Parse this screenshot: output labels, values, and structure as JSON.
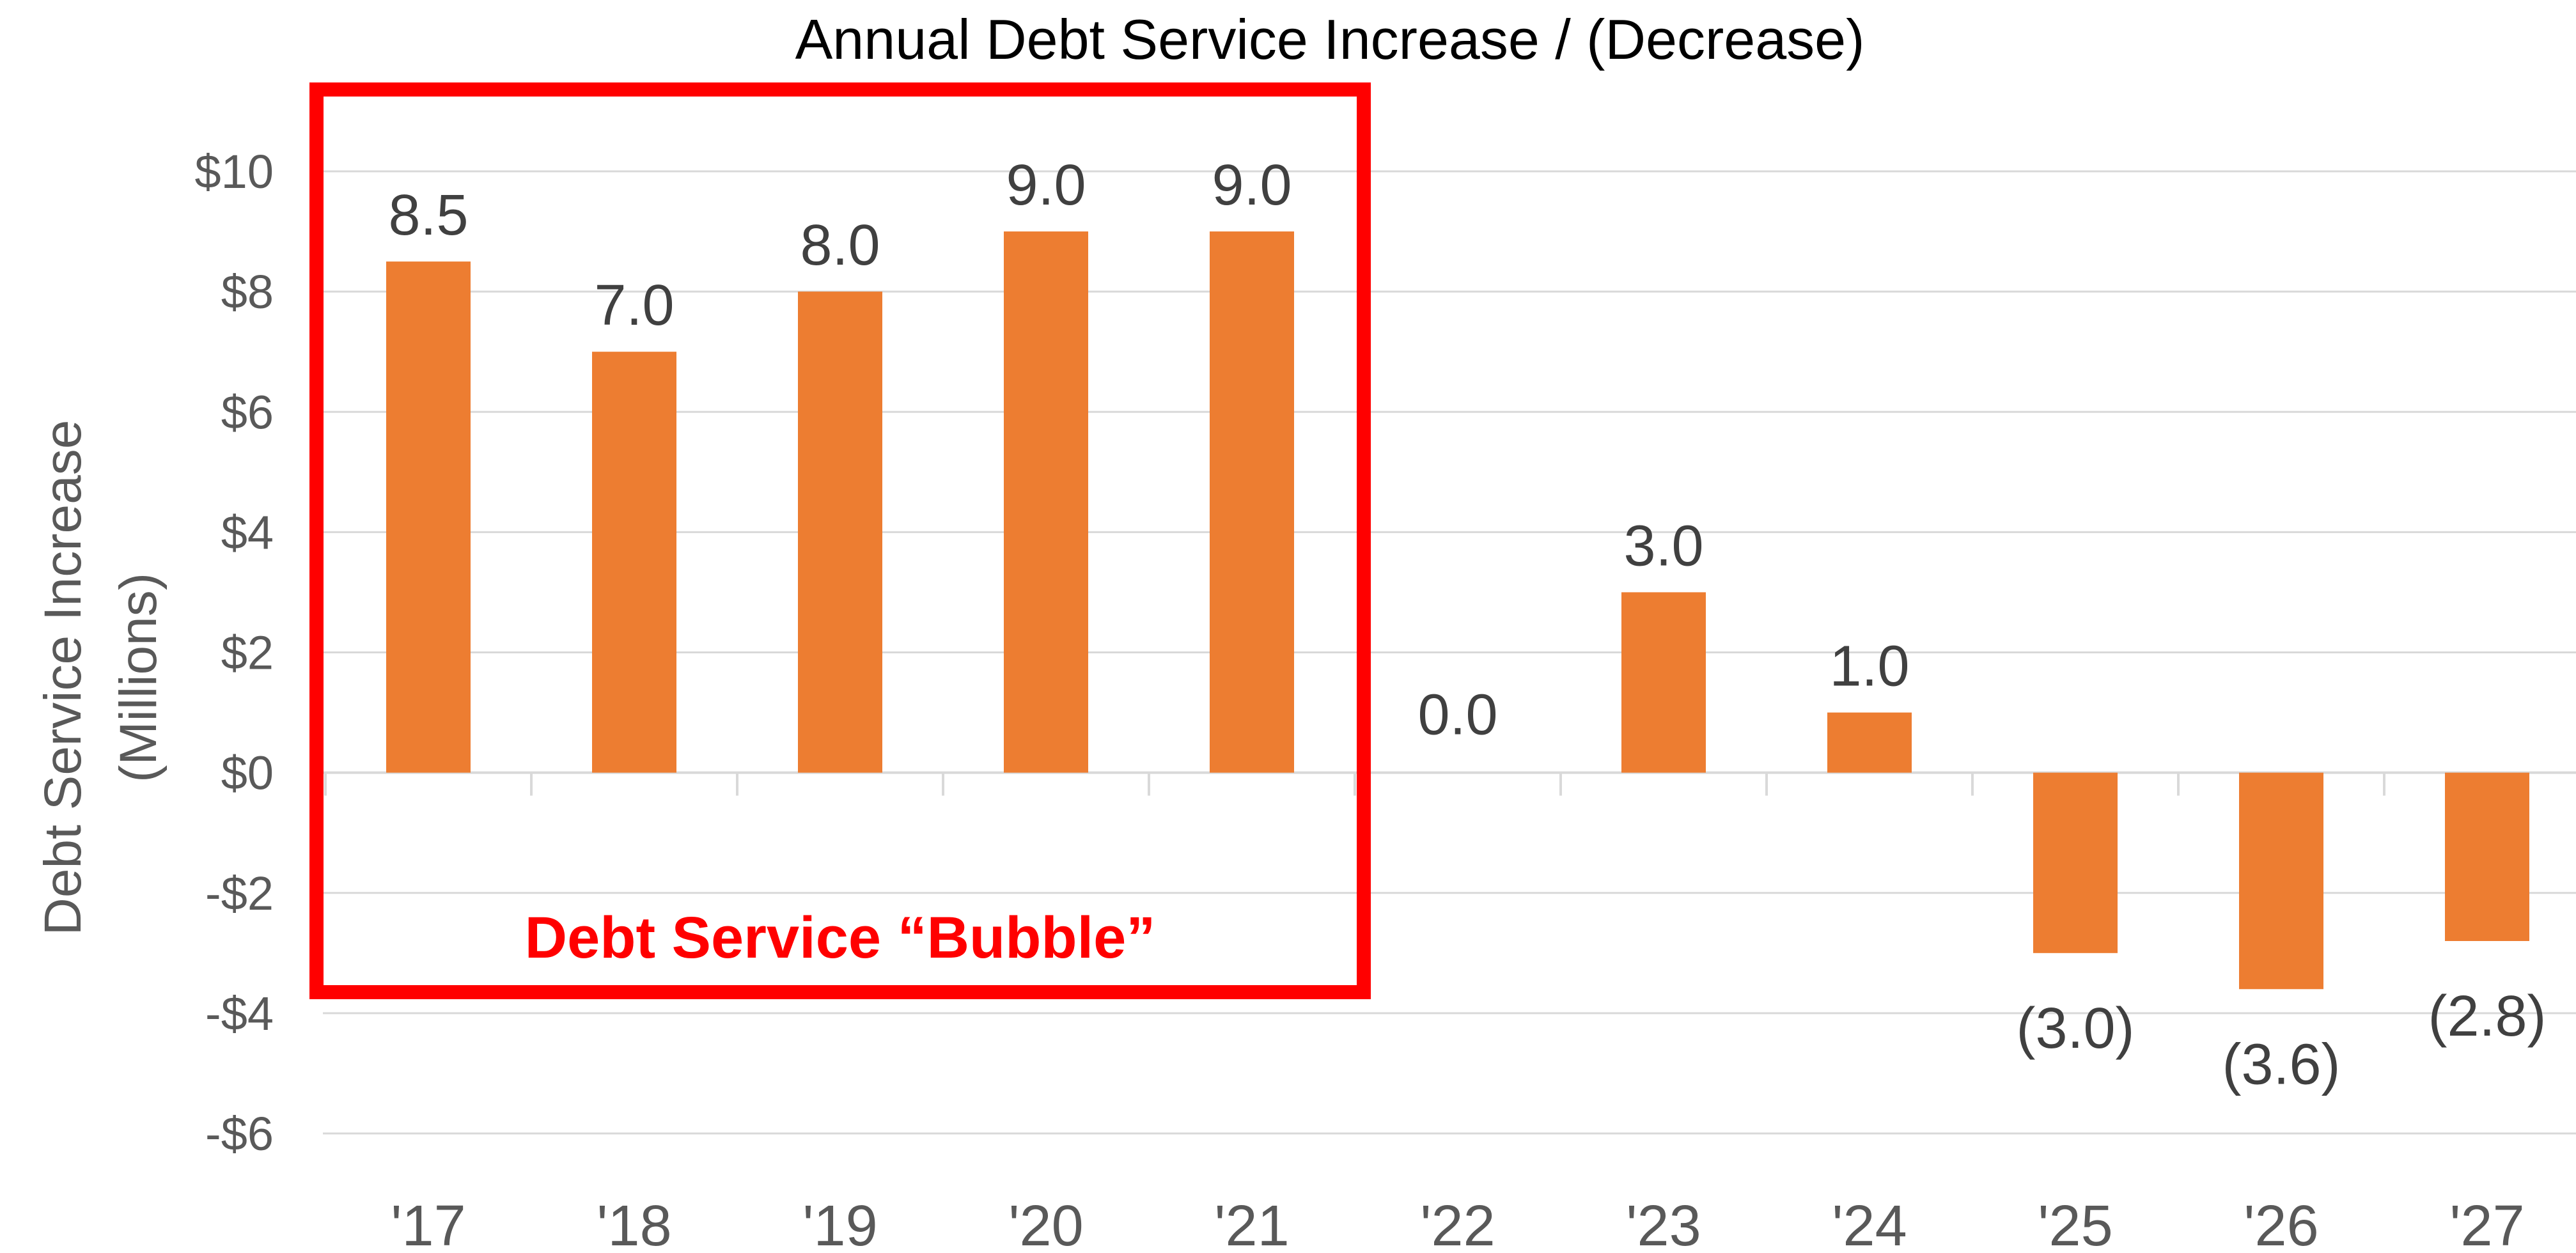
{
  "chart_data": {
    "type": "bar",
    "title": "Annual Debt Service Increase / (Decrease)",
    "ylabel_lines": [
      "Debt Service Increase",
      "(Millions)"
    ],
    "xlabel": "",
    "categories": [
      "'17",
      "'18",
      "'19",
      "'20",
      "'21",
      "'22",
      "'23",
      "'24",
      "'25",
      "'26",
      "'27"
    ],
    "values": [
      8.5,
      7.0,
      8.0,
      9.0,
      9.0,
      0.0,
      3.0,
      1.0,
      -3.0,
      -3.6,
      -2.8
    ],
    "data_labels": [
      "8.5",
      "7.0",
      "8.0",
      "9.0",
      "9.0",
      "0.0",
      "3.0",
      "1.0",
      "(3.0)",
      "(3.6)",
      "(2.8)"
    ],
    "ylim": [
      -6,
      10
    ],
    "yticks": [
      10,
      8,
      6,
      4,
      2,
      0,
      -2,
      -4,
      -6
    ],
    "ytick_labels": [
      "$10",
      "$8",
      "$6",
      "$4",
      "$2",
      "$0",
      "-$2",
      "-$4",
      "-$6"
    ],
    "grid": true,
    "legend": "none",
    "annotation": {
      "text": "Debt Service “Bubble”",
      "highlight_categories": [
        "'17",
        "'18",
        "'19",
        "'20",
        "'21"
      ]
    }
  },
  "colors": {
    "bar": "#ED7D31",
    "highlight_box": "#FF0000",
    "annotation_text": "#FF0000",
    "gridline": "#D9D9D9",
    "axis_text": "#595959",
    "title_text": "#000000"
  }
}
